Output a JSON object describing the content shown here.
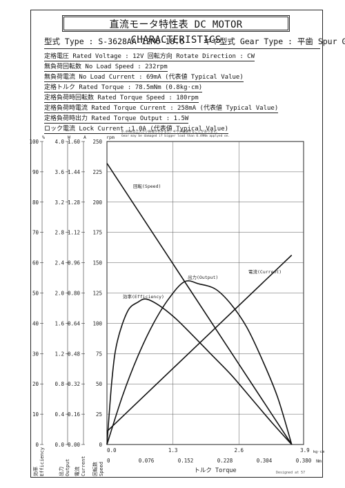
{
  "title": "直流モータ特性表 DC MOTOR CHARACTERISTICS",
  "model": {
    "type_label": "型式 Type : S-3628AA-12MO-18.6",
    "gear_label": "ギヤ型式 Gear Type : 平歯  Spur Gear"
  },
  "specs": [
    "定格電圧 Rated Voltage : 12V   回転方向 Rotate Direction : CW",
    "無負荷回転数 No Load Speed : 232rpm",
    "無負荷電流 No Load Current : 69mA (代表値 Typical Value)",
    "定格トルク Rated Torque : 78.5mNm (0.8kg·cm)",
    "定格負荷時回転数 Rated Torque Speed : 180rpm",
    "定格負荷時電流 Rated Torque Current : 258mA (代表値 Typical Value)",
    "定格負荷時出力 Rated Torque Output : 1.5W",
    "ロック電流 Lock Current :1.0A (代表値 Typical Value)"
  ],
  "warning": [
    "0.49Nm以上大きい負荷がかかると、ギヤが破損することがあります。",
    "Gear may be damaged if bigger load than 0.49Nm applyed on."
  ],
  "credit": "Designed at 57",
  "chart_data": {
    "type": "line",
    "x_kgcm_ticks": [
      "0.0",
      "1.3",
      "2.6",
      "3.9"
    ],
    "x_kgcm_unit": "kg·cm",
    "x_nm_ticks": [
      "0",
      "0.076",
      "0.152",
      "0.228",
      "0.304",
      "0.380"
    ],
    "x_nm_unit": "Nm",
    "xlabel": "トルク Torque",
    "xlim_nm": [
      0,
      0.38
    ],
    "axes": {
      "speed": {
        "unit": "rpm",
        "ticks": [
          "0",
          "25",
          "50",
          "75",
          "100",
          "125",
          "150",
          "175",
          "200",
          "225",
          "250"
        ],
        "label": "回転数 Speed",
        "ylim": [
          0,
          250
        ]
      },
      "current": {
        "unit": "A",
        "ticks": [
          "0.00",
          "0.16",
          "0.32",
          "0.48",
          "0.64",
          "0.80",
          "0.96",
          "1.12",
          "1.28",
          "1.44",
          "1.60"
        ],
        "label": "電流 Current",
        "ylim": [
          0,
          1.6
        ]
      },
      "output": {
        "unit": "W",
        "ticks": [
          "0.0",
          "0.4",
          "0.8",
          "1.2",
          "1.6",
          "2.0",
          "2.4",
          "2.8",
          "3.2",
          "3.6",
          "4.0"
        ],
        "label": "出力 Output",
        "ylim": [
          0,
          4.0
        ]
      },
      "efficiency": {
        "unit": "%",
        "ticks": [
          "0",
          "10",
          "20",
          "30",
          "40",
          "50",
          "60",
          "70",
          "80",
          "90",
          "100"
        ],
        "label": "効率 Efficiency",
        "ylim": [
          0,
          100
        ]
      }
    },
    "series": [
      {
        "name": "回転(Speed)",
        "axis": "speed",
        "x": [
          0,
          0.357
        ],
        "y": [
          232,
          0
        ]
      },
      {
        "name": "電流(Current)",
        "axis": "current",
        "x": [
          0,
          0.357
        ],
        "y": [
          0.069,
          1.0
        ]
      },
      {
        "name": "出力(Output)",
        "axis": "output",
        "x": [
          0,
          0.03,
          0.06,
          0.09,
          0.12,
          0.15,
          0.178,
          0.21,
          0.24,
          0.27,
          0.3,
          0.33,
          0.357
        ],
        "y": [
          0,
          0.64,
          1.17,
          1.6,
          1.93,
          2.15,
          2.12,
          2.05,
          1.85,
          1.55,
          1.12,
          0.62,
          0
        ]
      },
      {
        "name": "効率(Efficiency)",
        "axis": "efficiency",
        "x": [
          0,
          0.01,
          0.02,
          0.04,
          0.06,
          0.076,
          0.1,
          0.13,
          0.16,
          0.2,
          0.24,
          0.28,
          0.32,
          0.357
        ],
        "y": [
          0,
          22,
          34,
          44,
          47,
          48,
          46,
          42,
          37,
          30,
          23,
          15,
          7,
          0
        ]
      }
    ]
  }
}
